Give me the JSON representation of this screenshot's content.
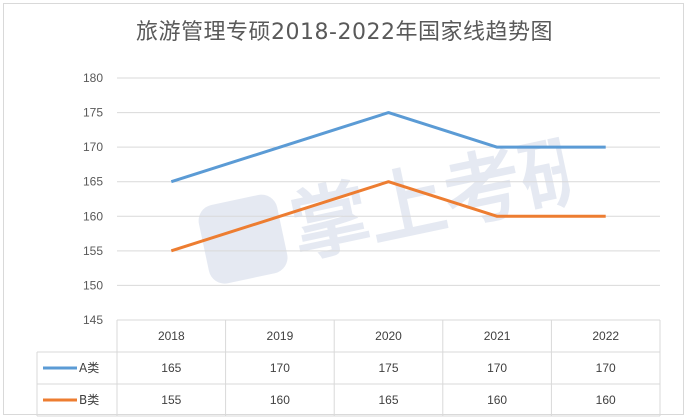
{
  "chart_data": {
    "type": "line",
    "title": "旅游管理专硕2018-2022年国家线趋势图",
    "categories": [
      "2018",
      "2019",
      "2020",
      "2021",
      "2022"
    ],
    "series": [
      {
        "name": "A类",
        "values": [
          165,
          170,
          175,
          170,
          170
        ],
        "color": "#5b9bd5"
      },
      {
        "name": "B类",
        "values": [
          155,
          160,
          165,
          160,
          160
        ],
        "color": "#ed7d31"
      }
    ],
    "ylim": [
      145,
      180
    ],
    "yticks": [
      145,
      150,
      155,
      160,
      165,
      170,
      175,
      180
    ],
    "grid": true,
    "data_table": true
  },
  "watermark": "掌上考研"
}
